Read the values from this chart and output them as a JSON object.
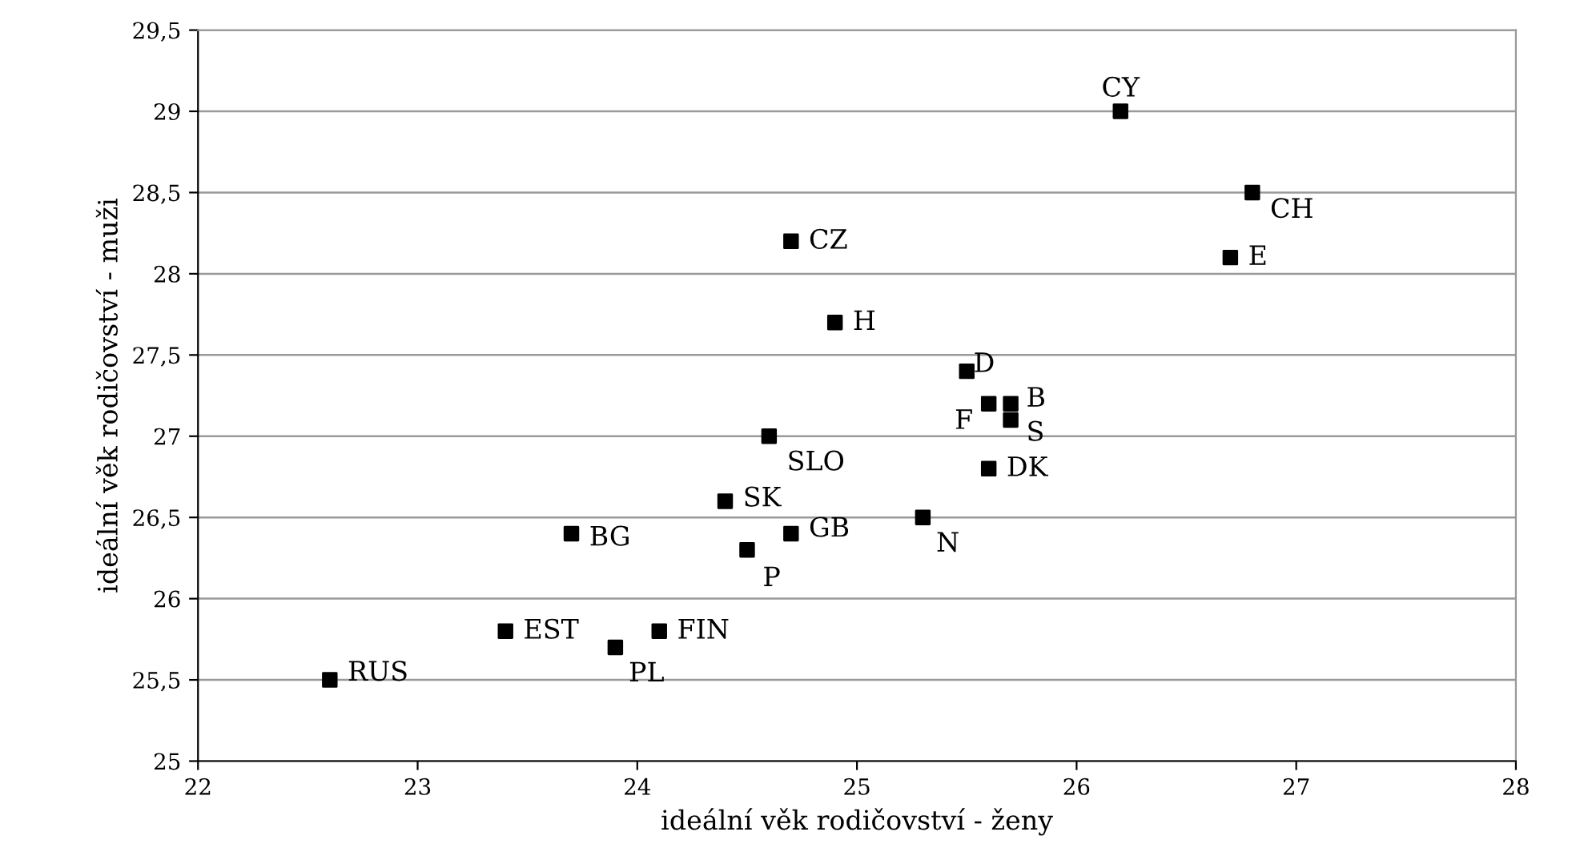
{
  "chart_data": {
    "type": "scatter",
    "xlabel": "ideální věk rodičovství - ženy",
    "ylabel": "ideální věk rodičovství - muži",
    "series": [
      {
        "color": "#000000",
        "marker": "square",
        "x": [
          22.6,
          23.4,
          23.9,
          24.1,
          23.7,
          24.4,
          24.5,
          24.7,
          24.6,
          24.7,
          24.9,
          25.3,
          25.5,
          25.6,
          25.7,
          25.7,
          25.6,
          26.2,
          26.8,
          26.7
        ],
        "values": [
          25.5,
          25.8,
          25.7,
          25.8,
          26.4,
          26.6,
          26.3,
          26.4,
          27.0,
          28.2,
          27.7,
          26.5,
          27.4,
          27.2,
          27.2,
          27.1,
          26.8,
          29.0,
          28.5,
          28.1
        ]
      }
    ],
    "annotations": [
      {
        "text": "RUS",
        "x": 22.6,
        "y": 25.5
      },
      {
        "text": "EST",
        "x": 23.4,
        "y": 25.8
      },
      {
        "text": "PL",
        "x": 23.9,
        "y": 25.7
      },
      {
        "text": "FIN",
        "x": 24.1,
        "y": 25.8
      },
      {
        "text": "BG",
        "x": 23.7,
        "y": 26.4
      },
      {
        "text": "SK",
        "x": 24.4,
        "y": 26.6
      },
      {
        "text": "P",
        "x": 24.5,
        "y": 26.3
      },
      {
        "text": "GB",
        "x": 24.7,
        "y": 26.4
      },
      {
        "text": "SLO",
        "x": 24.6,
        "y": 27.0
      },
      {
        "text": "CZ",
        "x": 24.7,
        "y": 28.2
      },
      {
        "text": "H",
        "x": 24.9,
        "y": 27.7
      },
      {
        "text": "N",
        "x": 25.3,
        "y": 26.5
      },
      {
        "text": "D",
        "x": 25.5,
        "y": 27.4
      },
      {
        "text": "F",
        "x": 25.6,
        "y": 27.2
      },
      {
        "text": "B",
        "x": 25.7,
        "y": 27.2
      },
      {
        "text": "S",
        "x": 25.7,
        "y": 27.1
      },
      {
        "text": "DK",
        "x": 25.6,
        "y": 26.8
      },
      {
        "text": "CY",
        "x": 26.2,
        "y": 29.0
      },
      {
        "text": "CH",
        "x": 26.8,
        "y": 28.5
      },
      {
        "text": "E",
        "x": 26.7,
        "y": 28.1
      }
    ],
    "xlim": [
      22,
      28
    ],
    "xticks": [
      22,
      23,
      24,
      25,
      26,
      27,
      28
    ],
    "ylim": [
      25,
      29.5
    ],
    "yticks": [
      25,
      {
        "value": 25.5,
        "label": "25,5"
      },
      26,
      {
        "value": 26.5,
        "label": "26,5"
      },
      27,
      {
        "value": 27.5,
        "label": "27,5"
      },
      28,
      {
        "value": 28.5,
        "label": "28,5"
      },
      29,
      {
        "value": 29.5,
        "label": "29,5"
      }
    ],
    "grid": "y",
    "legend": false
  }
}
